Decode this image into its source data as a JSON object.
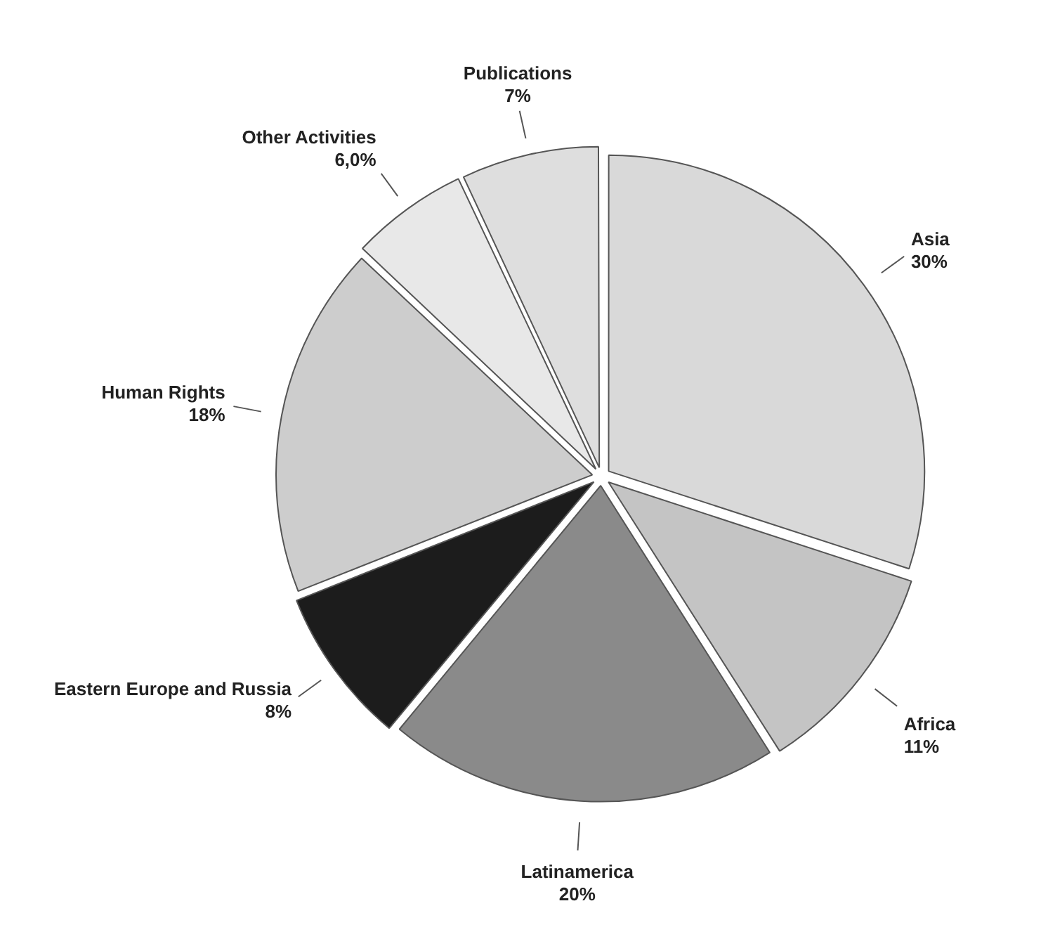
{
  "chart_data": {
    "type": "pie",
    "categories": [
      "Asia",
      "Africa",
      "Latinamerica",
      "Eastern Europe and Russia",
      "Human Rights",
      "Other Activities",
      "Publications"
    ],
    "values": [
      30,
      11,
      20,
      8,
      18,
      6,
      7
    ],
    "value_labels": [
      "30%",
      "11%",
      "20%",
      "8%",
      "18%",
      "6,0%",
      "7%"
    ],
    "colors": [
      "#d9d9d9",
      "#c4c4c4",
      "#8a8a8a",
      "#1c1c1c",
      "#cdcdcd",
      "#e8e8e8",
      "#dedede"
    ],
    "legend": false
  }
}
